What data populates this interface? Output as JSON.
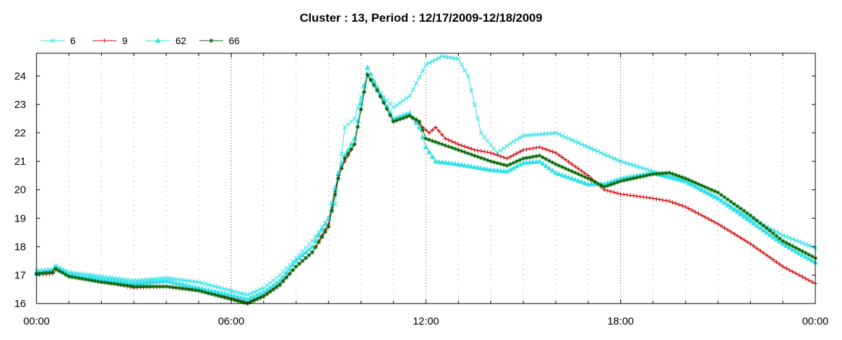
{
  "chart_data": {
    "type": "line",
    "title": "Cluster : 13, Period : 12/17/2009-12/18/2009",
    "xlabel": "",
    "ylabel": "",
    "xlim": [
      0,
      24
    ],
    "ylim": [
      16,
      24.8
    ],
    "x_ticks": [
      0,
      6,
      12,
      18,
      24
    ],
    "x_tick_labels": [
      "00:00",
      "06:00",
      "12:00",
      "18:00",
      "00:00"
    ],
    "y_ticks": [
      16,
      17,
      18,
      19,
      20,
      21,
      22,
      23,
      24
    ],
    "y_tick_labels": [
      "16",
      "17",
      "18",
      "19",
      "20",
      "21",
      "22",
      "23",
      "24"
    ],
    "grid": {
      "x_major": true,
      "x_minor_step_hours": 1,
      "style": "dotted"
    },
    "legend_position": "top-left",
    "series": [
      {
        "name": "6",
        "color": "#33e0e8",
        "marker": "x",
        "points": [
          [
            0,
            17.15
          ],
          [
            0.5,
            17.2
          ],
          [
            0.55,
            17.35
          ],
          [
            1,
            17.1
          ],
          [
            2,
            16.95
          ],
          [
            3,
            16.8
          ],
          [
            4,
            16.9
          ],
          [
            5,
            16.75
          ],
          [
            6,
            16.45
          ],
          [
            6.5,
            16.3
          ],
          [
            7,
            16.55
          ],
          [
            7.5,
            17.0
          ],
          [
            8,
            17.6
          ],
          [
            8.5,
            18.2
          ],
          [
            9,
            19.0
          ],
          [
            9.2,
            19.5
          ],
          [
            9.35,
            20.8
          ],
          [
            9.5,
            22.2
          ],
          [
            9.8,
            22.5
          ],
          [
            10.2,
            24.0
          ],
          [
            10.5,
            23.5
          ],
          [
            11,
            22.9
          ],
          [
            11.5,
            23.3
          ],
          [
            12,
            24.4
          ],
          [
            12.5,
            24.7
          ],
          [
            13,
            24.6
          ],
          [
            13.3,
            24.0
          ],
          [
            13.7,
            22.0
          ],
          [
            14.2,
            21.3
          ],
          [
            14.7,
            21.7
          ],
          [
            15,
            21.9
          ],
          [
            16,
            22.0
          ],
          [
            17,
            21.5
          ],
          [
            18,
            21.0
          ],
          [
            19,
            20.65
          ],
          [
            20,
            20.3
          ],
          [
            21,
            19.7
          ],
          [
            22,
            19.0
          ],
          [
            23,
            18.4
          ],
          [
            24,
            17.95
          ]
        ]
      },
      {
        "name": "9",
        "color": "#cc0000",
        "marker": "+",
        "points": [
          [
            0,
            17.0
          ],
          [
            0.5,
            17.05
          ],
          [
            0.55,
            17.2
          ],
          [
            1,
            17.0
          ],
          [
            2,
            16.8
          ],
          [
            3,
            16.55
          ],
          [
            4,
            16.6
          ],
          [
            5,
            16.5
          ],
          [
            6,
            16.2
          ],
          [
            6.5,
            16.05
          ],
          [
            7,
            16.3
          ],
          [
            7.5,
            16.7
          ],
          [
            8,
            17.3
          ],
          [
            8.5,
            17.8
          ],
          [
            9,
            18.8
          ],
          [
            9.3,
            20.5
          ],
          [
            9.5,
            21.0
          ],
          [
            9.8,
            21.6
          ],
          [
            10.2,
            24.05
          ],
          [
            10.5,
            23.5
          ],
          [
            11,
            22.4
          ],
          [
            11.5,
            22.6
          ],
          [
            11.8,
            22.3
          ],
          [
            12.1,
            22.0
          ],
          [
            12.3,
            22.2
          ],
          [
            12.6,
            21.8
          ],
          [
            13,
            21.6
          ],
          [
            13.5,
            21.4
          ],
          [
            14,
            21.3
          ],
          [
            14.5,
            21.1
          ],
          [
            15,
            21.4
          ],
          [
            15.5,
            21.5
          ],
          [
            16,
            21.3
          ],
          [
            17,
            20.5
          ],
          [
            17.5,
            20.0
          ],
          [
            18,
            19.85
          ],
          [
            19,
            19.7
          ],
          [
            19.5,
            19.6
          ],
          [
            20,
            19.4
          ],
          [
            21,
            18.8
          ],
          [
            22,
            18.1
          ],
          [
            23,
            17.3
          ],
          [
            24,
            16.7
          ]
        ]
      },
      {
        "name": "62",
        "color": "#33e0e8",
        "marker": "triangle",
        "points": [
          [
            0,
            17.05
          ],
          [
            0.5,
            17.15
          ],
          [
            0.55,
            17.3
          ],
          [
            1,
            17.0
          ],
          [
            2,
            16.85
          ],
          [
            3,
            16.7
          ],
          [
            4,
            16.8
          ],
          [
            5,
            16.55
          ],
          [
            6,
            16.3
          ],
          [
            6.5,
            16.15
          ],
          [
            7,
            16.4
          ],
          [
            7.5,
            16.8
          ],
          [
            8,
            17.5
          ],
          [
            8.5,
            18.0
          ],
          [
            9,
            19.0
          ],
          [
            9.3,
            20.6
          ],
          [
            9.5,
            21.2
          ],
          [
            9.8,
            21.8
          ],
          [
            10.2,
            24.3
          ],
          [
            10.5,
            23.6
          ],
          [
            11,
            22.5
          ],
          [
            11.5,
            22.7
          ],
          [
            11.8,
            22.2
          ],
          [
            12,
            21.5
          ],
          [
            12.3,
            21.0
          ],
          [
            13,
            20.9
          ],
          [
            14,
            20.7
          ],
          [
            14.5,
            20.65
          ],
          [
            15,
            20.95
          ],
          [
            15.5,
            21.0
          ],
          [
            16,
            20.6
          ],
          [
            17,
            20.2
          ],
          [
            17.5,
            20.2
          ],
          [
            18,
            20.4
          ],
          [
            19,
            20.6
          ],
          [
            20,
            20.3
          ],
          [
            21,
            19.7
          ],
          [
            22,
            18.9
          ],
          [
            23,
            18.1
          ],
          [
            24,
            17.45
          ]
        ]
      },
      {
        "name": "66",
        "color": "#006400",
        "marker": "*",
        "points": [
          [
            0,
            17.05
          ],
          [
            0.5,
            17.1
          ],
          [
            0.55,
            17.25
          ],
          [
            1,
            16.95
          ],
          [
            2,
            16.75
          ],
          [
            3,
            16.6
          ],
          [
            4,
            16.6
          ],
          [
            5,
            16.45
          ],
          [
            6,
            16.15
          ],
          [
            6.5,
            16.0
          ],
          [
            7,
            16.25
          ],
          [
            7.5,
            16.65
          ],
          [
            8,
            17.3
          ],
          [
            8.5,
            17.8
          ],
          [
            9,
            18.7
          ],
          [
            9.3,
            20.4
          ],
          [
            9.5,
            21.1
          ],
          [
            9.8,
            21.6
          ],
          [
            10.2,
            24.05
          ],
          [
            10.5,
            23.5
          ],
          [
            11,
            22.4
          ],
          [
            11.5,
            22.6
          ],
          [
            11.8,
            22.4
          ],
          [
            12,
            21.8
          ],
          [
            12.5,
            21.6
          ],
          [
            13,
            21.4
          ],
          [
            14,
            21.0
          ],
          [
            14.5,
            20.85
          ],
          [
            15,
            21.1
          ],
          [
            15.5,
            21.2
          ],
          [
            16,
            20.9
          ],
          [
            17,
            20.4
          ],
          [
            17.5,
            20.1
          ],
          [
            18,
            20.3
          ],
          [
            19,
            20.55
          ],
          [
            19.5,
            20.6
          ],
          [
            20,
            20.4
          ],
          [
            21,
            19.9
          ],
          [
            22,
            19.1
          ],
          [
            23,
            18.2
          ],
          [
            24,
            17.6
          ]
        ]
      }
    ]
  }
}
